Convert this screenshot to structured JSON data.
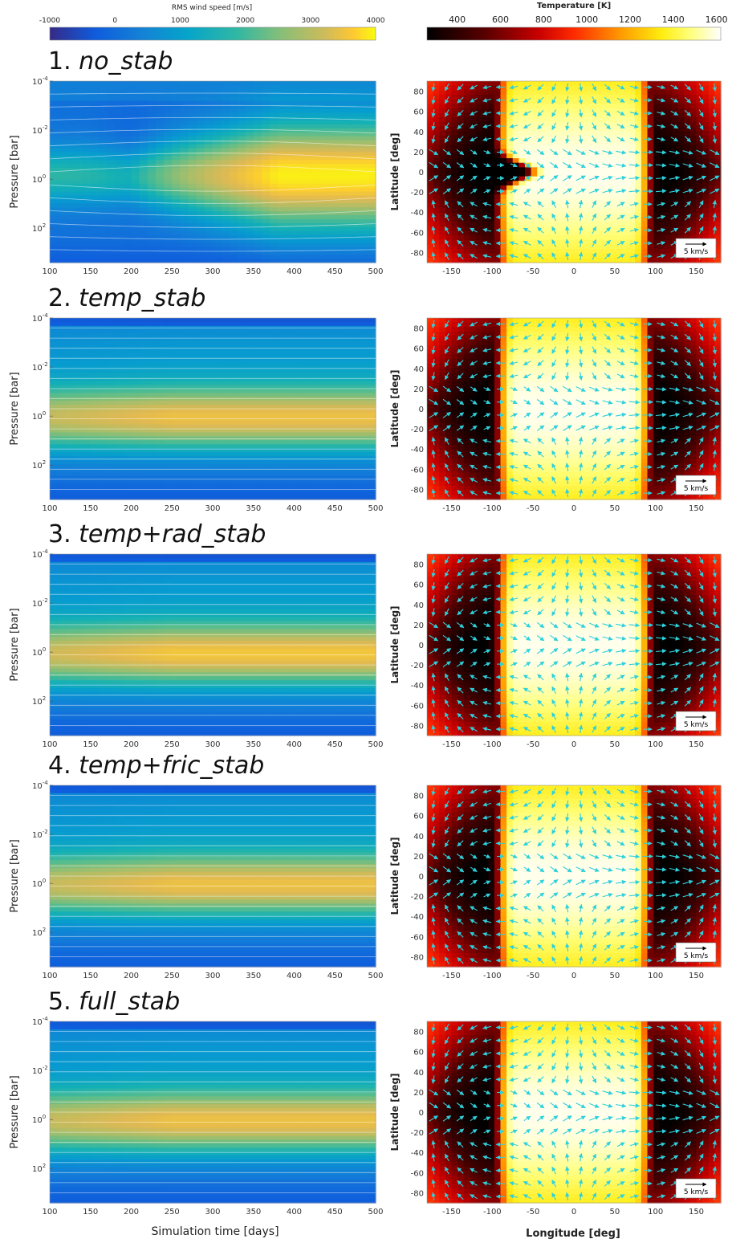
{
  "colorbars": {
    "wind": {
      "label": "RMS wind speed [m/s]",
      "ticks": [
        "-1000",
        "0",
        "1000",
        "2000",
        "3000",
        "4000"
      ],
      "range": [
        -1000,
        4000
      ],
      "colormap": "parula"
    },
    "temperature": {
      "label": "Temperature [K]",
      "ticks": [
        "400",
        "600",
        "800",
        "1000",
        "1200",
        "1400",
        "1600"
      ],
      "range": [
        260,
        1620
      ],
      "colormap": "hot"
    }
  },
  "left_axes": {
    "ylabel": "Pressure [bar]",
    "xlabel": "Simulation time [days]",
    "xticks": [
      "100",
      "150",
      "200",
      "250",
      "300",
      "350",
      "400",
      "450",
      "500"
    ],
    "yticks": [
      {
        "base": "10",
        "exp": "-4"
      },
      {
        "base": "10",
        "exp": "-2"
      },
      {
        "base": "10",
        "exp": "0"
      },
      {
        "base": "10",
        "exp": "2"
      }
    ]
  },
  "right_axes": {
    "ylabel": "Latitude [deg]",
    "xlabel": "Longitude [deg]",
    "xticks": [
      "-150",
      "-100",
      "-50",
      "0",
      "50",
      "100",
      "150"
    ],
    "yticks": [
      "80",
      "60",
      "40",
      "20",
      "0",
      "-20",
      "-40",
      "-60",
      "-80"
    ],
    "scale_label": "5 km/s"
  },
  "chart_data": [
    {
      "type": "heatmap",
      "panel": "1. no_stab",
      "title_number": "1.",
      "title_name": "no_stab",
      "left": {
        "quantity": "RMS wind speed [m/s]",
        "x_range_days": [
          100,
          500
        ],
        "y_range_log10_bar": [
          -4,
          3.4
        ],
        "max_wind_approx": 3900,
        "peak_log10_pressure_late": 0.0,
        "early_wind_approx": 1800
      },
      "right": {
        "quantity": "Temperature [K]",
        "x_range_deg": [
          -180,
          180
        ],
        "y_range_deg": [
          -90,
          90
        ],
        "dayside_max_K": 1600,
        "nightside_min_K": 260,
        "dayside_west_edge_deg": -90,
        "dayside_east_edge_deg": 90
      }
    },
    {
      "type": "heatmap",
      "panel": "2. temp_stab",
      "title_number": "2.",
      "title_name": "temp_stab",
      "left": {
        "quantity": "RMS wind speed [m/s]",
        "x_range_days": [
          100,
          500
        ],
        "y_range_log10_bar": [
          -4,
          3.4
        ],
        "max_wind_approx": 3300,
        "peak_log10_pressure": 0.0
      },
      "right": {
        "quantity": "Temperature [K]",
        "x_range_deg": [
          -180,
          180
        ],
        "y_range_deg": [
          -90,
          90
        ],
        "dayside_max_K": 1600,
        "nightside_min_K": 260,
        "dayside_west_edge_deg": -90,
        "dayside_east_edge_deg": 90
      }
    },
    {
      "type": "heatmap",
      "panel": "3. temp+rad_stab",
      "title_number": "3.",
      "title_name": "temp+rad_stab",
      "left": {
        "quantity": "RMS wind speed [m/s]",
        "x_range_days": [
          100,
          500
        ],
        "y_range_log10_bar": [
          -4,
          3.4
        ],
        "max_wind_approx": 3400,
        "peak_log10_pressure": 0.0
      },
      "right": {
        "quantity": "Temperature [K]",
        "x_range_deg": [
          -180,
          180
        ],
        "y_range_deg": [
          -90,
          90
        ],
        "dayside_max_K": 1600,
        "nightside_min_K": 260,
        "dayside_west_edge_deg": -90,
        "dayside_east_edge_deg": 90
      }
    },
    {
      "type": "heatmap",
      "panel": "4. temp+fric_stab",
      "title_number": "4.",
      "title_name": "temp+fric_stab",
      "left": {
        "quantity": "RMS wind speed [m/s]",
        "x_range_days": [
          100,
          500
        ],
        "y_range_log10_bar": [
          -4,
          3.4
        ],
        "max_wind_approx": 3300,
        "peak_log10_pressure": 0.0
      },
      "right": {
        "quantity": "Temperature [K]",
        "x_range_deg": [
          -180,
          180
        ],
        "y_range_deg": [
          -90,
          90
        ],
        "dayside_max_K": 1600,
        "nightside_min_K": 260,
        "dayside_west_edge_deg": -90,
        "dayside_east_edge_deg": 90
      }
    },
    {
      "type": "heatmap",
      "panel": "5. full_stab",
      "title_number": "5.",
      "title_name": "full_stab",
      "left": {
        "quantity": "RMS wind speed [m/s]",
        "x_range_days": [
          100,
          500
        ],
        "y_range_log10_bar": [
          -4,
          3.4
        ],
        "max_wind_approx": 3300,
        "peak_log10_pressure": 0.0
      },
      "right": {
        "quantity": "Temperature [K]",
        "x_range_deg": [
          -180,
          180
        ],
        "y_range_deg": [
          -90,
          90
        ],
        "dayside_max_K": 1600,
        "nightside_min_K": 260,
        "dayside_west_edge_deg": -90,
        "dayside_east_edge_deg": 90
      }
    }
  ]
}
